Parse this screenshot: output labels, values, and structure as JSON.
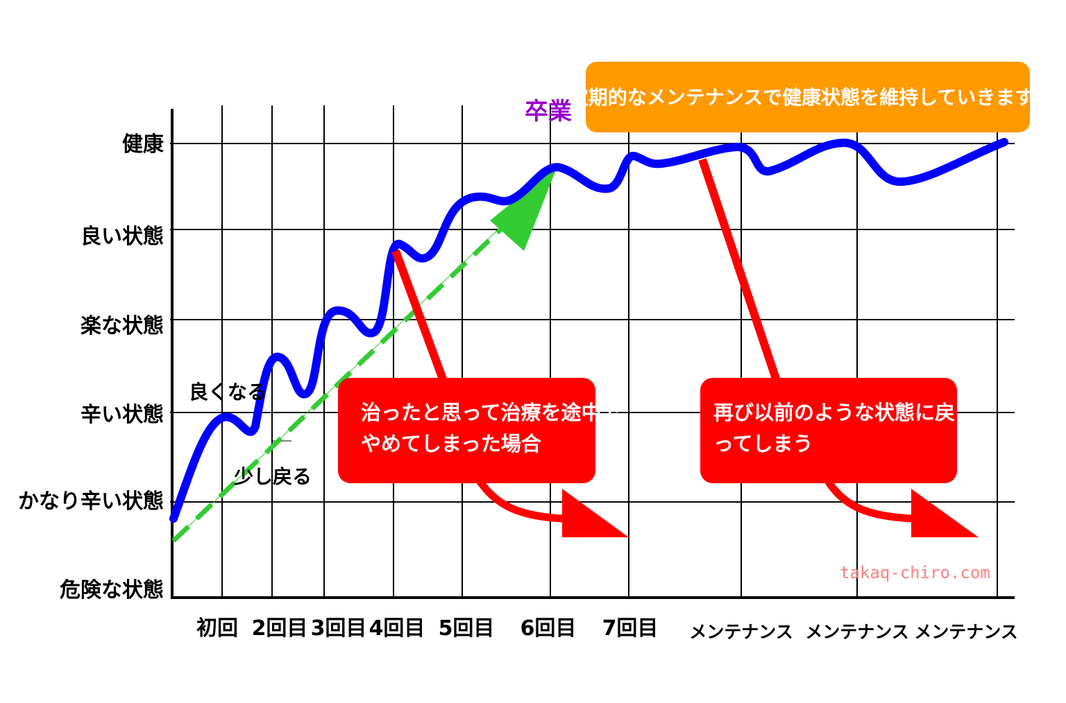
{
  "y_levels": [
    "健康",
    "良い状態",
    "楽な状態",
    "辛い状態",
    "かなり辛い状態",
    "危険な状態"
  ],
  "x_labels": [
    "初回",
    "2回目",
    "3回目",
    "4回目",
    "5回目",
    "6回目",
    "7回目",
    "メンテナンス",
    "メンテナンス",
    "メンテナンス"
  ],
  "graduation": {
    "label": "卒業",
    "color": "#9900cc"
  },
  "maintenance_banner": {
    "text": "定期的なメンテナンスで健康状態を維持していきます",
    "color": "#ff9900"
  },
  "notes": {
    "improve": "良くなる",
    "relapse_small": "少し戻る"
  },
  "stop_box": {
    "line1": "治ったと思って治療を途中で",
    "line2": "やめてしまった場合",
    "color": "#ff0000"
  },
  "return_box": {
    "line1": "再び以前のような状態に戻",
    "line2": "ってしまう",
    "color": "#ff0000"
  },
  "watermark": {
    "text": "takaq-chiro.com",
    "color": "#ff8080"
  },
  "colors": {
    "health_curve": "#0000ff",
    "trend_arrow": "#33cc33",
    "drop_arrow": "#ff0000"
  }
}
